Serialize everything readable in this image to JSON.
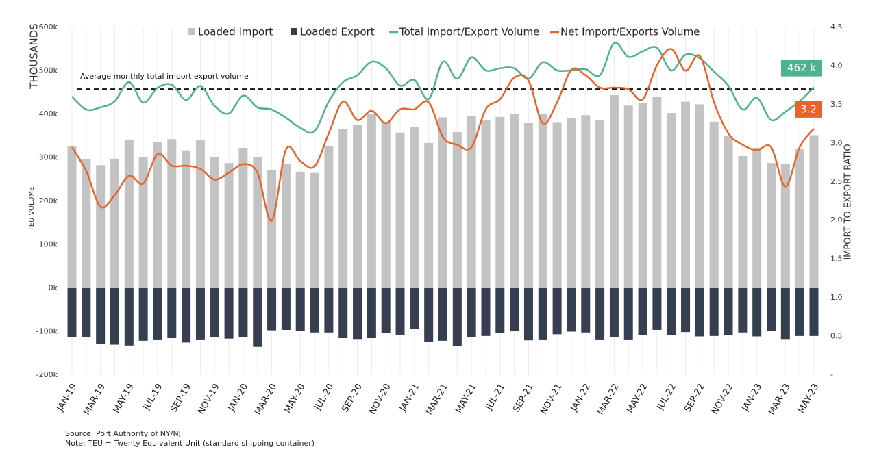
{
  "chart_data": {
    "type": "bar-line",
    "legend": "top",
    "categories": [
      "JAN-19",
      null,
      "MAR-19",
      null,
      "MAY-19",
      null,
      "JUL-19",
      null,
      "SEP-19",
      null,
      "NOV-19",
      null,
      "JAN-20",
      null,
      "MAR-20",
      null,
      "MAY-20",
      null,
      "JUL-20",
      null,
      "SEP-20",
      null,
      "NOV-20",
      null,
      "JAN-21",
      null,
      "MAR-21",
      null,
      "MAY-21",
      null,
      "JUL-21",
      null,
      "SEP-21",
      null,
      "NOV-21",
      null,
      "JAN-22",
      null,
      "MAR-22",
      null,
      "MAY-22",
      null,
      "JUL-22",
      null,
      "SEP-22",
      null,
      "NOV-22",
      null,
      "JAN-23",
      null,
      "MAR-23",
      null,
      "MAY-23"
    ],
    "ylabel": "TEU VOLUME",
    "ylabel_unit": "THOUSANDS",
    "y2label": "IMPORT TO EXPORT RATIO",
    "ylim": [
      -200000,
      600000
    ],
    "yticks": [
      {
        "value": 600000,
        "label": "600k"
      },
      {
        "value": 500000,
        "label": "500k"
      },
      {
        "value": 400000,
        "label": "400k"
      },
      {
        "value": 300000,
        "label": "300k"
      },
      {
        "value": 200000,
        "label": "200k"
      },
      {
        "value": 100000,
        "label": "100k"
      },
      {
        "value": 0,
        "label": "0k"
      },
      {
        "value": -100000,
        "label": "-100k"
      },
      {
        "value": -200000,
        "label": "-200k"
      }
    ],
    "y2lim": [
      0,
      4.5
    ],
    "y2ticks": [
      4.5,
      {
        "value": 4,
        "label": "4.0"
      },
      3.5,
      {
        "value": 3,
        "label": "3.0"
      },
      2.5,
      {
        "value": 2,
        "label": "2.0"
      },
      1.5,
      {
        "value": 1,
        "label": "1.0"
      },
      0.5,
      {
        "value": 0,
        "label": "-"
      }
    ],
    "reference_line": {
      "value": 458000,
      "label": "Average monthly total import export volume"
    },
    "series": [
      {
        "name": "Loaded Import",
        "kind": "bar",
        "color": "#c3c3c3",
        "values": [
          327000,
          296000,
          283000,
          298000,
          342000,
          301000,
          337000,
          343000,
          317000,
          340000,
          301000,
          288000,
          323000,
          301000,
          272000,
          285000,
          268000,
          265000,
          326000,
          366000,
          375000,
          400000,
          383000,
          358000,
          370000,
          334000,
          393000,
          359000,
          397000,
          387000,
          394000,
          400000,
          380000,
          400000,
          382000,
          392000,
          398000,
          386000,
          444000,
          420000,
          426000,
          441000,
          403000,
          429000,
          423000,
          383000,
          350000,
          304000,
          323000,
          288000,
          286000,
          321000,
          352000
        ]
      },
      {
        "name": "Loaded Export",
        "kind": "bar",
        "color": "#363e52",
        "values": [
          -112000,
          -113000,
          -129000,
          -130000,
          -132000,
          -121000,
          -118000,
          -115000,
          -125000,
          -118000,
          -112000,
          -116000,
          -113000,
          -135000,
          -97000,
          -96000,
          -98000,
          -102000,
          -102000,
          -115000,
          -117000,
          -115000,
          -103000,
          -107000,
          -94000,
          -124000,
          -121000,
          -133000,
          -112000,
          -110000,
          -103000,
          -99000,
          -120000,
          -118000,
          -106000,
          -100000,
          -102000,
          -118000,
          -113000,
          -118000,
          -108000,
          -96000,
          -108000,
          -101000,
          -111000,
          -110000,
          -108000,
          -102000,
          -111000,
          -98000,
          -117000,
          -110000,
          -110000
        ]
      },
      {
        "name": "Total Import/Export Volume",
        "kind": "line",
        "color": "#4db38e",
        "values": [
          441000,
          411000,
          416000,
          430000,
          474000,
          427000,
          461000,
          468000,
          433000,
          465000,
          419000,
          402000,
          443000,
          416000,
          411000,
          392000,
          369000,
          361000,
          430000,
          474000,
          490000,
          521000,
          506000,
          466000,
          479000,
          435000,
          521000,
          482000,
          531000,
          501000,
          506000,
          506000,
          482000,
          520000,
          501000,
          501000,
          504000,
          490000,
          564000,
          532000,
          545000,
          553000,
          501000,
          537000,
          529000,
          498000,
          466000,
          411000,
          438000,
          387000,
          406000,
          430000,
          462000
        ],
        "value_labels": [
          null,
          null,
          null,
          null,
          null,
          null,
          null,
          null,
          null,
          null,
          null,
          null,
          null,
          null,
          null,
          null,
          null,
          null,
          null,
          null,
          null,
          null,
          null,
          null,
          null,
          null,
          null,
          null,
          null,
          null,
          null,
          null,
          null,
          null,
          null,
          null,
          null,
          null,
          null,
          null,
          null,
          null,
          null,
          null,
          null,
          null,
          null,
          null,
          null,
          null,
          null,
          null,
          "462 k"
        ]
      },
      {
        "name": "Net Import/Exports Volume",
        "kind": "line",
        "axis": "y2",
        "color": "#e8632a",
        "values": [
          2.95,
          2.64,
          2.18,
          2.33,
          2.58,
          2.48,
          2.86,
          2.71,
          2.71,
          2.67,
          2.53,
          2.62,
          2.73,
          2.62,
          2.0,
          2.92,
          2.77,
          2.7,
          3.13,
          3.54,
          3.3,
          3.42,
          3.26,
          3.44,
          3.44,
          3.53,
          3.08,
          2.98,
          2.95,
          3.44,
          3.57,
          3.85,
          3.81,
          3.26,
          3.53,
          3.95,
          3.88,
          3.72,
          3.72,
          3.7,
          3.57,
          4.01,
          4.22,
          3.94,
          4.13,
          3.53,
          3.13,
          2.98,
          2.91,
          2.95,
          2.44,
          2.95,
          3.19
        ],
        "value_labels": [
          null,
          null,
          null,
          null,
          null,
          null,
          null,
          null,
          null,
          null,
          null,
          null,
          null,
          null,
          null,
          null,
          null,
          null,
          null,
          null,
          null,
          null,
          null,
          null,
          null,
          null,
          null,
          null,
          null,
          null,
          null,
          null,
          null,
          null,
          null,
          null,
          null,
          null,
          null,
          null,
          null,
          null,
          null,
          null,
          null,
          null,
          null,
          null,
          null,
          null,
          null,
          null,
          "3.2"
        ]
      }
    ],
    "source": "Source: Port Authority of NY/NJ",
    "note": "Note: TEU = Twenty Equivalent Unit (standard shipping container)"
  }
}
